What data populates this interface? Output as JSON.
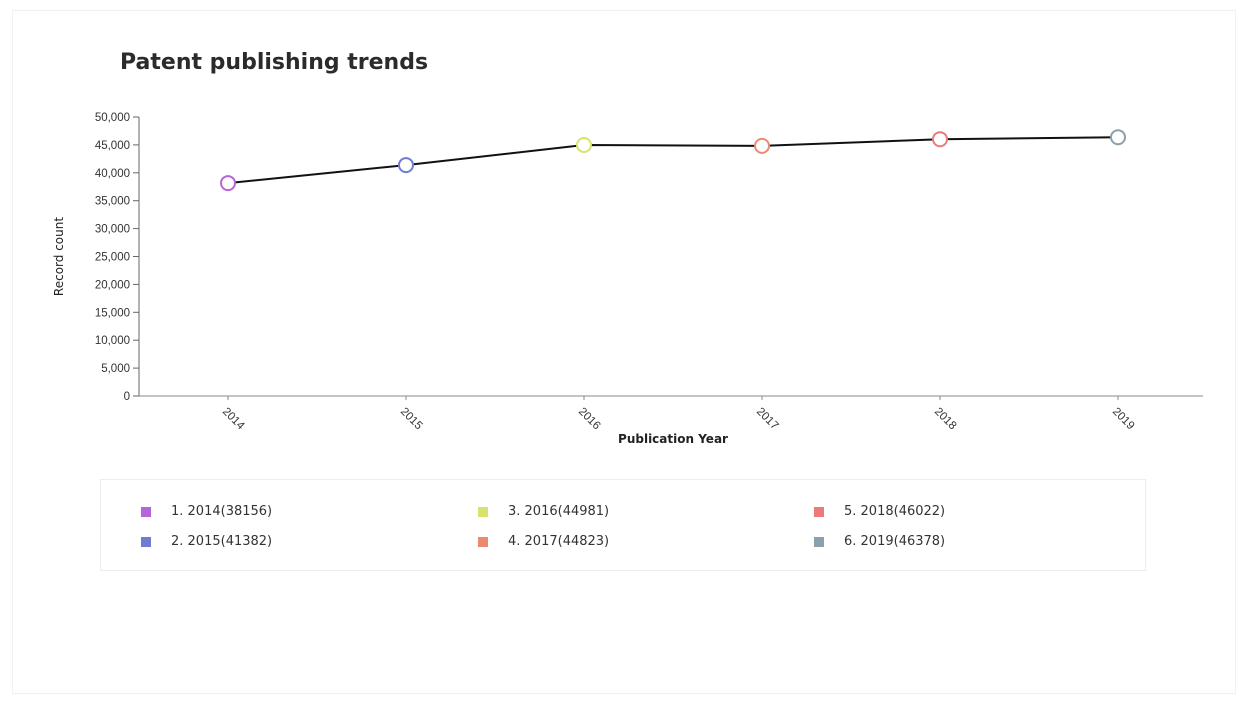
{
  "chart_data": {
    "type": "line",
    "title": "Patent publishing trends",
    "xlabel": "Publication Year",
    "ylabel": "Record count",
    "categories": [
      "2014",
      "2015",
      "2016",
      "2017",
      "2018",
      "2019"
    ],
    "values": [
      38156,
      41382,
      44981,
      44823,
      46022,
      46378
    ],
    "ylim": [
      0,
      50000
    ],
    "yticks": [
      "0",
      "5,000",
      "10,000",
      "15,000",
      "20,000",
      "25,000",
      "30,000",
      "35,000",
      "40,000",
      "45,000",
      "50,000"
    ],
    "line_color": "#111111",
    "point_colors": [
      "#b565d8",
      "#6f7ccf",
      "#d7e36a",
      "#ec8a70",
      "#ec7a7a",
      "#8aa0ad"
    ],
    "grid": false,
    "legend_position": "bottom",
    "legend": [
      {
        "label": "1. 2014(38156)",
        "color": "#b565d8"
      },
      {
        "label": "2. 2015(41382)",
        "color": "#6f7ccf"
      },
      {
        "label": "3. 2016(44981)",
        "color": "#d7e36a"
      },
      {
        "label": "4. 2017(44823)",
        "color": "#ec8a70"
      },
      {
        "label": "5. 2018(46022)",
        "color": "#ec7a7a"
      },
      {
        "label": "6. 2019(46378)",
        "color": "#8aa0ad"
      }
    ]
  }
}
